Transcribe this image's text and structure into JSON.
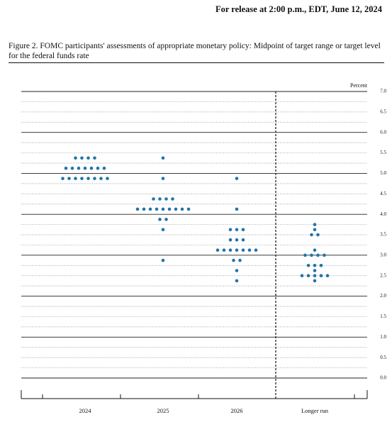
{
  "header": {
    "release": "For release at 2:00 p.m., EDT, June 12, 2024"
  },
  "chart_data": {
    "type": "dot",
    "title": "Figure 2. FOMC participants' assessments of appropriate monetary policy: Midpoint of target range or target level for the federal funds rate",
    "ylabel": "Percent",
    "color": "#2174a8",
    "categories": [
      "2024",
      "2025",
      "2026",
      "Longer run"
    ],
    "values": [
      [
        5.375,
        5.375,
        5.375,
        5.375,
        5.125,
        5.125,
        5.125,
        5.125,
        5.125,
        5.125,
        5.125,
        4.875,
        4.875,
        4.875,
        4.875,
        4.875,
        4.875,
        4.875,
        4.875
      ],
      [
        5.375,
        4.875,
        4.375,
        4.375,
        4.375,
        4.375,
        4.125,
        4.125,
        4.125,
        4.125,
        4.125,
        4.125,
        4.125,
        4.125,
        4.125,
        3.875,
        3.875,
        3.625,
        2.875
      ],
      [
        4.875,
        4.125,
        3.625,
        3.625,
        3.625,
        3.375,
        3.375,
        3.375,
        3.125,
        3.125,
        3.125,
        3.125,
        3.125,
        3.125,
        3.125,
        2.875,
        2.875,
        2.625,
        2.375
      ],
      [
        3.75,
        3.625,
        3.5,
        3.5,
        3.125,
        3.0,
        3.0,
        3.0,
        3.0,
        2.75,
        2.75,
        2.75,
        2.625,
        2.5,
        2.5,
        2.5,
        2.5,
        2.5,
        2.375
      ]
    ],
    "ylim": [
      0,
      7
    ],
    "yticks": [
      {
        "value": 0,
        "label": "0.0"
      },
      0.5,
      {
        "value": 1,
        "label": "1.0"
      },
      1.5,
      {
        "value": 2,
        "label": "2.0"
      },
      2.5,
      {
        "value": 3,
        "label": "3.0"
      },
      3.5,
      {
        "value": 4,
        "label": "4.0"
      },
      4.5,
      {
        "value": 5,
        "label": "5.0"
      },
      5.5,
      {
        "value": 6,
        "label": "6.0"
      },
      6.5,
      {
        "value": 7,
        "label": "7.0"
      }
    ],
    "minor_yticks": [
      0.25,
      0.75,
      1.25,
      1.75,
      2.25,
      2.75,
      3.25,
      3.75,
      4.25,
      4.75,
      5.25,
      5.75,
      6.25,
      6.75
    ],
    "grid": true
  }
}
